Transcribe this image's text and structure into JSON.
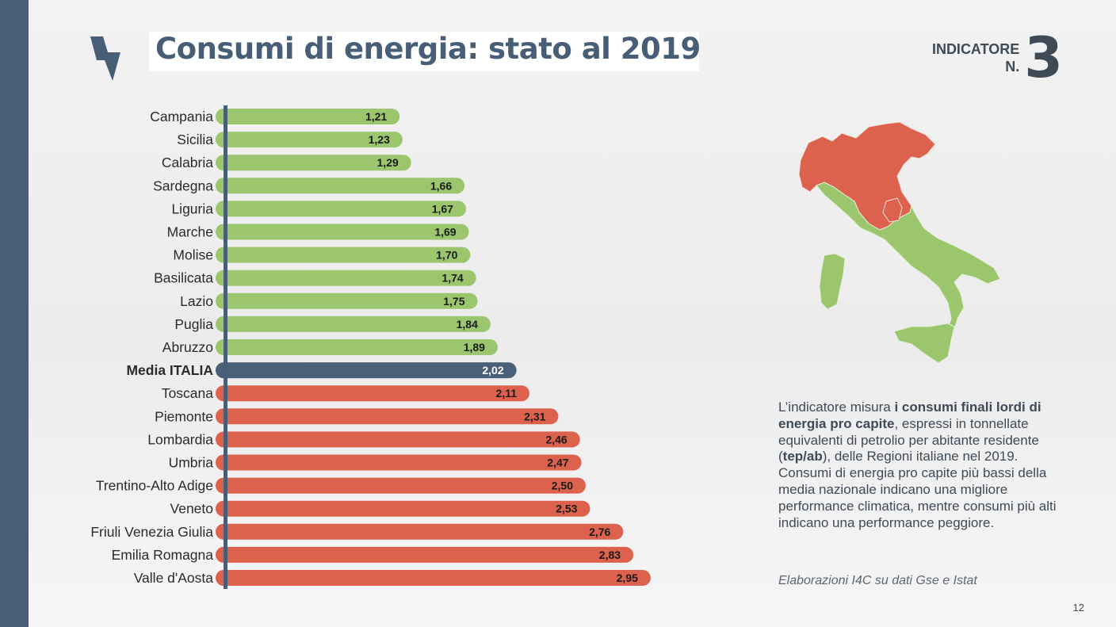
{
  "title": "Consumi di energia: stato al 2019",
  "indicator": {
    "label": "INDICATORE\nN.",
    "number": "3"
  },
  "description": {
    "part1": "L’indicatore misura ",
    "bold1": "i consumi finali lordi di energia pro capite",
    "part2": ", espressi in tonnellate equivalenti di petrolio per abitante residente (",
    "bold2": "tep/ab",
    "part3": "), delle Regioni italiane nel 2019. Consumi di energia pro capite più bassi della media nazionale indicano una migliore performance climatica, mentre consumi più alti indicano una performance peggiore."
  },
  "source": "Elaborazioni I4C su dati Gse e Istat",
  "page_number": "12",
  "colors": {
    "below_average": "#9bc66d",
    "average": "#4a6079",
    "above_average": "#dd624d",
    "brand": "#485e77",
    "map_below": "#9bc66d",
    "map_above": "#dd624d"
  },
  "icons": {
    "logo": "lightning-bolt-icon"
  },
  "chart_data": {
    "type": "bar",
    "orientation": "horizontal",
    "categories": [
      "Campania",
      "Sicilia",
      "Calabria",
      "Sardegna",
      "Liguria",
      "Marche",
      "Molise",
      "Basilicata",
      "Lazio",
      "Puglia",
      "Abruzzo",
      "Media ITALIA",
      "Toscana",
      "Piemonte",
      "Lombardia",
      "Umbria",
      "Trentino-Alto Adige",
      "Veneto",
      "Friuli Venezia Giulia",
      "Emilia Romagna",
      "Valle d'Aosta"
    ],
    "values": [
      1.21,
      1.23,
      1.29,
      1.66,
      1.67,
      1.69,
      1.7,
      1.74,
      1.75,
      1.84,
      1.89,
      2.02,
      2.11,
      2.31,
      2.46,
      2.47,
      2.5,
      2.53,
      2.76,
      2.83,
      2.95
    ],
    "value_labels": [
      "1,21",
      "1,23",
      "1,29",
      "1,66",
      "1,67",
      "1,69",
      "1,70",
      "1,74",
      "1,75",
      "1,84",
      "1,89",
      "2,02",
      "2,11",
      "2,31",
      "2,46",
      "2,47",
      "2,50",
      "2,53",
      "2,76",
      "2,83",
      "2,95"
    ],
    "groups": [
      "below",
      "below",
      "below",
      "below",
      "below",
      "below",
      "below",
      "below",
      "below",
      "below",
      "below",
      "average",
      "above",
      "above",
      "above",
      "above",
      "above",
      "above",
      "above",
      "above",
      "above"
    ],
    "highlight_category": "Media ITALIA",
    "xlim": [
      0,
      3
    ],
    "grid": false,
    "legend": "none",
    "title": "",
    "xlabel": "",
    "ylabel": ""
  }
}
